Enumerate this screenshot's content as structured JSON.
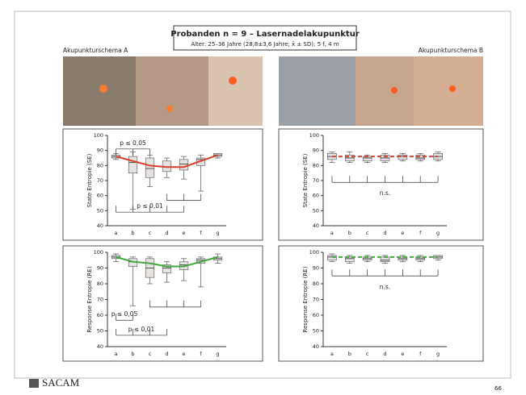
{
  "header": {
    "title": "Probanden n = 9 – Lasernadelakupunktur",
    "subtitle": "Alter: 25–36 Jahre (28,8±3,6 Jahre; x̄ ± SD); 5 f, 4 m",
    "left_label": "Akupunkturschema A",
    "right_label": "Akupunkturschema B"
  },
  "footer": {
    "logo": "SACAM",
    "page": "66"
  },
  "chart_data": [
    {
      "type": "box",
      "ylabel": "State Entropie (SE)",
      "categories": [
        "a",
        "b",
        "c",
        "d",
        "e",
        "f",
        "g"
      ],
      "ylim": [
        40,
        100
      ],
      "yticks": [
        40,
        50,
        60,
        70,
        80,
        90,
        100
      ],
      "boxes": {
        "min": [
          84,
          51,
          66,
          72,
          71,
          63,
          85
        ],
        "q1": [
          85,
          75,
          72,
          76,
          77,
          80,
          86
        ],
        "median": [
          86,
          82,
          78,
          79,
          81,
          84,
          87
        ],
        "q3": [
          87,
          86,
          85,
          83,
          84,
          85,
          88
        ],
        "max": [
          88,
          89,
          87,
          85,
          86,
          87,
          88
        ]
      },
      "trend": {
        "color": "#d9412b",
        "dashed": false,
        "values": [
          86,
          83,
          80,
          79,
          79,
          83,
          87
        ]
      },
      "annotations": [
        "p ≤ 0,05",
        "p ≤ 0,01"
      ]
    },
    {
      "type": "box",
      "ylabel": "State Entropie (SE)",
      "categories": [
        "a",
        "b",
        "c",
        "d",
        "e",
        "f",
        "g"
      ],
      "ylim": [
        40,
        100
      ],
      "yticks": [
        40,
        50,
        60,
        70,
        80,
        90,
        100
      ],
      "boxes": {
        "min": [
          82,
          82,
          82,
          82,
          83,
          83,
          83
        ],
        "q1": [
          84,
          83,
          83,
          83,
          84,
          84,
          84
        ],
        "median": [
          86,
          85,
          85,
          85,
          86,
          85,
          86
        ],
        "q3": [
          88,
          87,
          86,
          87,
          87,
          87,
          88
        ],
        "max": [
          89,
          89,
          87,
          88,
          88,
          88,
          89
        ]
      },
      "trend": {
        "color": "#d9412b",
        "dashed": true,
        "values": [
          86,
          86,
          86,
          86,
          86,
          86,
          86
        ]
      },
      "annotations": [
        "n.s."
      ]
    },
    {
      "type": "box",
      "ylabel": "Response Entropie (RE)",
      "categories": [
        "a",
        "b",
        "c",
        "d",
        "e",
        "f",
        "g"
      ],
      "ylim": [
        40,
        100
      ],
      "yticks": [
        40,
        50,
        60,
        70,
        80,
        90,
        100
      ],
      "boxes": {
        "min": [
          94,
          66,
          80,
          81,
          82,
          78,
          93
        ],
        "q1": [
          96,
          91,
          84,
          87,
          89,
          93,
          95
        ],
        "median": [
          97,
          94,
          90,
          90,
          92,
          95,
          96
        ],
        "q3": [
          98,
          96,
          96,
          92,
          94,
          96,
          97
        ],
        "max": [
          99,
          97,
          97,
          94,
          96,
          97,
          99
        ]
      },
      "trend": {
        "color": "#3daa3a",
        "dashed": false,
        "values": [
          97,
          94,
          93,
          91,
          91,
          94,
          97
        ]
      },
      "annotations": [
        "p ≤ 0,05",
        "p ≤ 0,01"
      ]
    },
    {
      "type": "box",
      "ylabel": "Response Entropie (RE)",
      "categories": [
        "a",
        "b",
        "c",
        "d",
        "e",
        "f",
        "g"
      ],
      "ylim": [
        40,
        100
      ],
      "yticks": [
        40,
        50,
        60,
        70,
        80,
        90,
        100
      ],
      "boxes": {
        "min": [
          94,
          93,
          94,
          93,
          94,
          94,
          95
        ],
        "q1": [
          95,
          94,
          95,
          94,
          95,
          95,
          96
        ],
        "median": [
          97,
          96,
          96,
          95,
          96,
          96,
          97
        ],
        "q3": [
          98,
          97,
          97,
          97,
          97,
          97,
          98
        ],
        "max": [
          99,
          98,
          98,
          98,
          98,
          98,
          98
        ]
      },
      "trend": {
        "color": "#3daa3a",
        "dashed": true,
        "values": [
          97,
          97,
          97,
          97,
          97,
          97,
          97
        ]
      },
      "annotations": [
        "n.s."
      ]
    }
  ]
}
